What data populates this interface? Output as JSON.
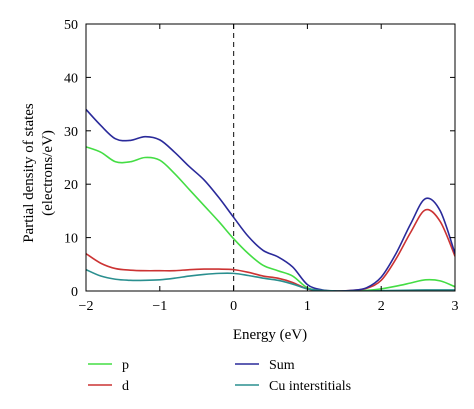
{
  "chart_data": {
    "type": "line",
    "xlabel": "Energy (eV)",
    "ylabel_lines": [
      "Partial density of states",
      "(electrons/eV)"
    ],
    "xlim": [
      -2,
      3
    ],
    "ylim": [
      0,
      50
    ],
    "xticks": [
      -2,
      -1,
      0,
      1,
      2,
      3
    ],
    "xtick_labels": [
      "−2",
      "−1",
      "0",
      "1",
      "2",
      "3"
    ],
    "yticks": [
      0,
      10,
      20,
      30,
      40,
      50
    ],
    "ytick_labels": [
      "0",
      "10",
      "20",
      "30",
      "40",
      "50"
    ],
    "fermi_level": 0,
    "legend_placement": "below",
    "series": [
      {
        "name": "p",
        "color": "#44dd44",
        "x": [
          -2,
          -1.8,
          -1.6,
          -1.4,
          -1.2,
          -1.0,
          -0.8,
          -0.6,
          -0.4,
          -0.2,
          0,
          0.2,
          0.4,
          0.6,
          0.8,
          1.0,
          1.2,
          1.4,
          1.6,
          1.8,
          2.0,
          2.2,
          2.4,
          2.6,
          2.8,
          3.0
        ],
        "y": [
          27,
          26,
          24.2,
          24.2,
          25,
          24.5,
          22,
          19,
          16,
          13,
          9.8,
          7,
          4.8,
          3.8,
          2.8,
          0.6,
          0.1,
          0,
          0,
          0.1,
          0.4,
          0.9,
          1.5,
          2.1,
          1.9,
          0.8
        ]
      },
      {
        "name": "d",
        "color": "#cc3333",
        "x": [
          -2,
          -1.8,
          -1.6,
          -1.4,
          -1.2,
          -1.0,
          -0.8,
          -0.6,
          -0.4,
          -0.2,
          0,
          0.2,
          0.4,
          0.6,
          0.8,
          1.0,
          1.2,
          1.4,
          1.6,
          1.8,
          2.0,
          2.2,
          2.4,
          2.6,
          2.8,
          3.0
        ],
        "y": [
          7,
          5.2,
          4.2,
          3.9,
          3.8,
          3.8,
          3.8,
          4,
          4.1,
          4.1,
          4,
          3.5,
          2.8,
          2.4,
          1.6,
          0.4,
          0.1,
          0,
          0.1,
          0.5,
          2,
          6,
          11,
          15.2,
          13,
          6.5
        ]
      },
      {
        "name": "Sum",
        "color": "#2a2a9a",
        "x": [
          -2,
          -1.8,
          -1.6,
          -1.4,
          -1.2,
          -1.0,
          -0.8,
          -0.6,
          -0.4,
          -0.2,
          0,
          0.2,
          0.4,
          0.6,
          0.8,
          1.0,
          1.2,
          1.4,
          1.6,
          1.8,
          2.0,
          2.2,
          2.4,
          2.6,
          2.8,
          3.0
        ],
        "y": [
          34,
          31,
          28.5,
          28.2,
          28.9,
          28.3,
          26,
          23.3,
          20.8,
          17.5,
          13.8,
          10.2,
          7.6,
          6.4,
          4.5,
          1.2,
          0.2,
          0,
          0.1,
          0.6,
          2.6,
          7,
          12.6,
          17.3,
          15,
          7
        ]
      },
      {
        "name": "Cu interstitials",
        "color": "#2a8f8f",
        "x": [
          -2,
          -1.8,
          -1.6,
          -1.4,
          -1.2,
          -1.0,
          -0.8,
          -0.6,
          -0.4,
          -0.2,
          0,
          0.2,
          0.4,
          0.6,
          0.8,
          1.0,
          1.2,
          1.4,
          1.6,
          1.8,
          2.0,
          2.2,
          2.4,
          2.6,
          2.8,
          3.0
        ],
        "y": [
          4,
          2.8,
          2.2,
          2,
          2,
          2.1,
          2.4,
          2.8,
          3.1,
          3.3,
          3.3,
          2.9,
          2.4,
          2,
          1.3,
          0.4,
          0.1,
          0,
          0,
          0,
          0.05,
          0.1,
          0.15,
          0.2,
          0.2,
          0.2
        ]
      }
    ]
  }
}
